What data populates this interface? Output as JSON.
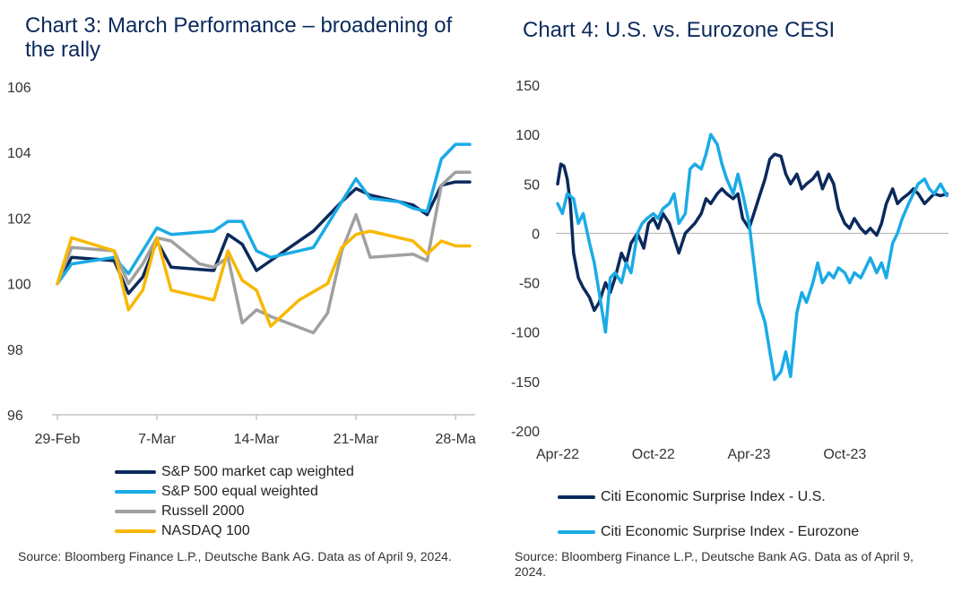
{
  "chart_data": [
    {
      "type": "line",
      "title": "Chart 3: March Performance – broadening of the rally",
      "xlabel": "",
      "ylabel": "",
      "ylim": [
        96,
        106
      ],
      "yticks": [
        96,
        98,
        100,
        102,
        104,
        106
      ],
      "xlim": [
        0,
        29
      ],
      "xticks": [
        {
          "label": "29-Feb",
          "x": 0
        },
        {
          "label": "7-Mar",
          "x": 7
        },
        {
          "label": "14-Mar",
          "x": 14
        },
        {
          "label": "21-Mar",
          "x": 21
        },
        {
          "label": "28-Ma",
          "x": 28
        }
      ],
      "series": [
        {
          "name": "S&P 500 market cap weighted",
          "color": "#0b2a5c",
          "x": [
            0,
            1,
            4,
            5,
            6,
            7,
            8,
            11,
            12,
            13,
            14,
            15,
            18,
            20,
            21,
            22,
            23,
            24,
            25,
            26,
            27,
            28,
            29
          ],
          "values": [
            100.0,
            100.8,
            100.7,
            99.7,
            100.2,
            101.3,
            100.5,
            100.4,
            101.5,
            101.2,
            100.4,
            100.7,
            101.6,
            102.5,
            102.9,
            102.7,
            102.6,
            102.5,
            102.4,
            102.1,
            103.0,
            103.1,
            103.1
          ]
        },
        {
          "name": "S&P 500 equal weighted",
          "color": "#1aabe6",
          "x": [
            0,
            1,
            4,
            5,
            6,
            7,
            8,
            11,
            12,
            13,
            14,
            15,
            18,
            20,
            21,
            22,
            23,
            24,
            25,
            26,
            27,
            28,
            29
          ],
          "values": [
            100.0,
            100.6,
            100.8,
            100.3,
            101.0,
            101.7,
            101.5,
            101.6,
            101.9,
            101.9,
            101.0,
            100.8,
            101.1,
            102.5,
            103.2,
            102.6,
            102.55,
            102.5,
            102.3,
            102.2,
            103.8,
            104.25,
            104.25
          ]
        },
        {
          "name": "Russell 2000",
          "color": "#a0a0a0",
          "x": [
            0,
            1,
            4,
            5,
            6,
            7,
            8,
            10,
            11,
            12,
            13,
            14,
            15,
            18,
            19,
            20,
            21,
            22,
            25,
            26,
            27,
            28,
            29
          ],
          "values": [
            100.0,
            101.1,
            101.0,
            100.0,
            100.6,
            101.4,
            101.3,
            100.6,
            100.5,
            100.8,
            98.8,
            99.2,
            99.0,
            98.5,
            99.1,
            101.0,
            102.1,
            100.8,
            100.9,
            100.7,
            103.0,
            103.4,
            103.4
          ]
        },
        {
          "name": "NASDAQ 100",
          "color": "#f8b800",
          "x": [
            0,
            1,
            4,
            5,
            6,
            7,
            8,
            11,
            12,
            13,
            14,
            15,
            17,
            19,
            20,
            21,
            22,
            25,
            26,
            27,
            28,
            29
          ],
          "values": [
            100.0,
            101.4,
            101.0,
            99.2,
            99.8,
            101.4,
            99.8,
            99.5,
            101.0,
            100.1,
            99.8,
            98.7,
            99.5,
            100.0,
            101.1,
            101.5,
            101.6,
            101.3,
            100.9,
            101.3,
            101.15,
            101.15
          ]
        }
      ],
      "legend": [
        "S&P 500 market cap weighted",
        "S&P 500 equal weighted",
        "Russell 2000",
        "NASDAQ 100"
      ],
      "source": "Source: Bloomberg Finance L.P., Deutsche Bank AG. Data as of April 9, 2024."
    },
    {
      "type": "line",
      "title": "Chart 4: U.S. vs. Eurozone CESI",
      "xlabel": "",
      "ylabel": "",
      "ylim": [
        -200,
        150
      ],
      "yticks": [
        -200,
        -150,
        -100,
        -50,
        0,
        50,
        100,
        150
      ],
      "xlim": [
        0,
        24.5
      ],
      "xticks": [
        {
          "label": "Apr-22",
          "x": 0
        },
        {
          "label": "Oct-22",
          "x": 6
        },
        {
          "label": "Apr-23",
          "x": 12
        },
        {
          "label": "Oct-23",
          "x": 18
        }
      ],
      "series": [
        {
          "name": "Citi Economic Surprise Index - U.S.",
          "color": "#0b2a5c",
          "x": [
            0,
            0.2,
            0.4,
            0.6,
            0.8,
            1.0,
            1.3,
            1.6,
            2.0,
            2.3,
            2.6,
            3.0,
            3.3,
            3.6,
            4.0,
            4.3,
            4.6,
            5.0,
            5.4,
            5.7,
            6.0,
            6.3,
            6.6,
            7.0,
            7.3,
            7.6,
            8.0,
            8.3,
            8.6,
            9.0,
            9.3,
            9.6,
            10.0,
            10.3,
            10.6,
            11.0,
            11.3,
            11.6,
            12.0,
            12.3,
            12.6,
            13.0,
            13.3,
            13.6,
            14.0,
            14.3,
            14.6,
            15.0,
            15.3,
            15.6,
            16.0,
            16.3,
            16.6,
            17.0,
            17.3,
            17.6,
            18.0,
            18.3,
            18.6,
            19.0,
            19.3,
            19.6,
            20.0,
            20.3,
            20.6,
            21.0,
            21.3,
            21.6,
            22.0,
            22.3,
            22.6,
            23.0,
            23.3,
            23.6,
            24.0,
            24.4
          ],
          "values": [
            50,
            70,
            68,
            55,
            30,
            -20,
            -45,
            -55,
            -65,
            -78,
            -70,
            -50,
            -60,
            -45,
            -20,
            -30,
            -10,
            0,
            -15,
            10,
            15,
            5,
            20,
            10,
            -5,
            -20,
            0,
            5,
            10,
            20,
            35,
            30,
            40,
            45,
            40,
            35,
            40,
            15,
            5,
            20,
            35,
            55,
            75,
            80,
            78,
            60,
            50,
            60,
            45,
            50,
            55,
            62,
            45,
            60,
            50,
            25,
            10,
            5,
            15,
            5,
            0,
            5,
            -2,
            10,
            30,
            45,
            30,
            35,
            40,
            45,
            40,
            30,
            35,
            40,
            38,
            40
          ]
        },
        {
          "name": "Citi Economic Surprise Index - Eurozone",
          "color": "#1aabe6",
          "x": [
            0,
            0.3,
            0.6,
            1.0,
            1.3,
            1.6,
            2.0,
            2.3,
            2.6,
            3.0,
            3.3,
            3.6,
            4.0,
            4.3,
            4.6,
            5.0,
            5.3,
            5.6,
            6.0,
            6.3,
            6.6,
            7.0,
            7.3,
            7.6,
            8.0,
            8.3,
            8.6,
            9.0,
            9.3,
            9.6,
            10.0,
            10.3,
            10.6,
            11.0,
            11.3,
            11.6,
            12.0,
            12.3,
            12.6,
            13.0,
            13.3,
            13.6,
            14.0,
            14.3,
            14.6,
            15.0,
            15.3,
            15.6,
            16.0,
            16.3,
            16.6,
            17.0,
            17.3,
            17.6,
            18.0,
            18.3,
            18.6,
            19.0,
            19.3,
            19.6,
            20.0,
            20.3,
            20.6,
            21.0,
            21.3,
            21.6,
            22.0,
            22.3,
            22.6,
            23.0,
            23.3,
            23.6,
            24.0,
            24.4
          ],
          "values": [
            30,
            20,
            40,
            35,
            10,
            20,
            -10,
            -30,
            -60,
            -100,
            -45,
            -40,
            -50,
            -30,
            -40,
            0,
            10,
            15,
            20,
            15,
            25,
            30,
            40,
            10,
            20,
            65,
            70,
            65,
            80,
            100,
            90,
            70,
            55,
            40,
            60,
            40,
            10,
            -30,
            -70,
            -90,
            -120,
            -148,
            -140,
            -120,
            -145,
            -80,
            -60,
            -70,
            -50,
            -30,
            -50,
            -40,
            -45,
            -35,
            -40,
            -50,
            -40,
            -45,
            -35,
            -25,
            -40,
            -30,
            -45,
            -10,
            0,
            15,
            30,
            40,
            50,
            55,
            45,
            40,
            50,
            38
          ]
        }
      ],
      "legend": [
        "Citi Economic Surprise Index - U.S.",
        "Citi Economic Surprise Index - Eurozone"
      ],
      "source": "Source: Bloomberg Finance L.P., Deutsche Bank AG. Data as of April 9, 2024."
    }
  ]
}
